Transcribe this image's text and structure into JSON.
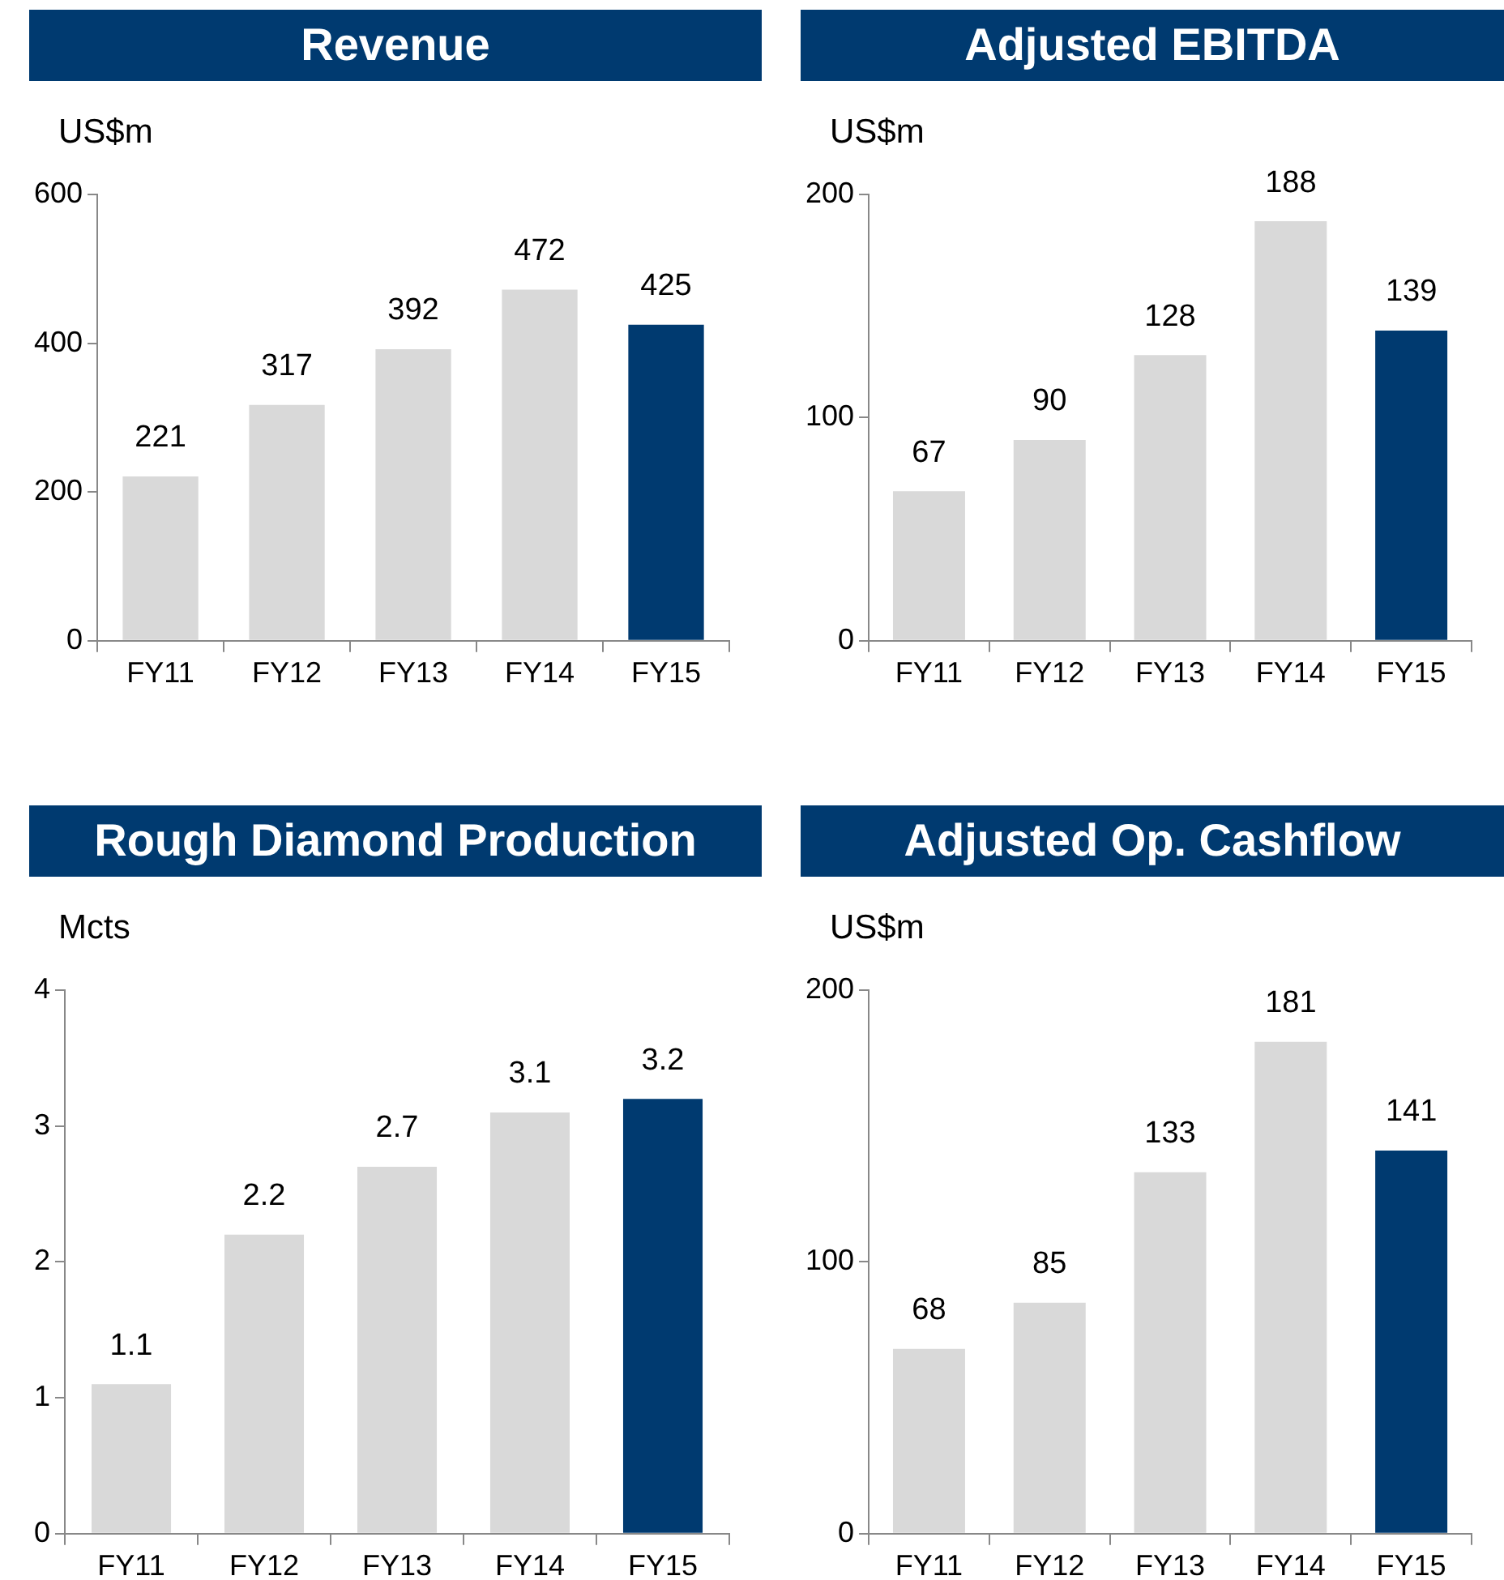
{
  "chart_data": [
    {
      "type": "bar",
      "title": "Revenue",
      "ylabel": "US$m",
      "categories": [
        "FY11",
        "FY12",
        "FY13",
        "FY14",
        "FY15"
      ],
      "values": [
        221,
        317,
        392,
        472,
        425
      ],
      "colors": [
        "#d9d9d9",
        "#d9d9d9",
        "#d9d9d9",
        "#d9d9d9",
        "#003a70"
      ],
      "ylim": [
        0,
        600
      ],
      "yticks": [
        0,
        200,
        400,
        600
      ],
      "data_labels": true,
      "grid": false,
      "legend": false
    },
    {
      "type": "bar",
      "title": "Adjusted EBITDA",
      "ylabel": "US$m",
      "categories": [
        "FY11",
        "FY12",
        "FY13",
        "FY14",
        "FY15"
      ],
      "values": [
        67,
        90,
        128,
        188,
        139
      ],
      "colors": [
        "#d9d9d9",
        "#d9d9d9",
        "#d9d9d9",
        "#d9d9d9",
        "#003a70"
      ],
      "ylim": [
        0,
        200
      ],
      "yticks": [
        0,
        100,
        200
      ],
      "data_labels": true,
      "grid": false,
      "legend": false
    },
    {
      "type": "bar",
      "title": "Rough Diamond Production",
      "ylabel": "Mcts",
      "categories": [
        "FY11",
        "FY12",
        "FY13",
        "FY14",
        "FY15"
      ],
      "values": [
        1.1,
        2.2,
        2.7,
        3.1,
        3.2
      ],
      "colors": [
        "#d9d9d9",
        "#d9d9d9",
        "#d9d9d9",
        "#d9d9d9",
        "#003a70"
      ],
      "ylim": [
        0,
        4
      ],
      "yticks": [
        0,
        1,
        2,
        3,
        4
      ],
      "data_labels": true,
      "grid": false,
      "legend": false
    },
    {
      "type": "bar",
      "title": "Adjusted Op. Cashflow",
      "ylabel": "US$m",
      "categories": [
        "FY11",
        "FY12",
        "FY13",
        "FY14",
        "FY15"
      ],
      "values": [
        68,
        85,
        133,
        181,
        141
      ],
      "colors": [
        "#d9d9d9",
        "#d9d9d9",
        "#d9d9d9",
        "#d9d9d9",
        "#003a70"
      ],
      "ylim": [
        0,
        200
      ],
      "yticks": [
        0,
        100,
        200
      ],
      "data_labels": true,
      "grid": false,
      "legend": false
    }
  ]
}
